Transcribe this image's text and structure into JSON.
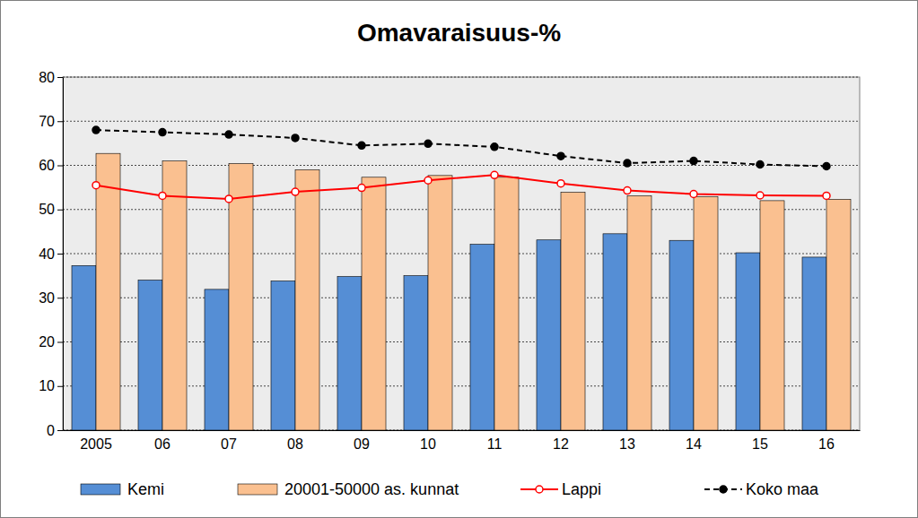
{
  "chart_data": {
    "type": "bar",
    "title": "Omavaraisuus-%",
    "categories": [
      "2005",
      "06",
      "07",
      "08",
      "09",
      "10",
      "11",
      "12",
      "13",
      "14",
      "15",
      "16"
    ],
    "series": [
      {
        "name": "Kemi",
        "type": "bar",
        "color": "#558ed5",
        "values": [
          37.3,
          34.0,
          31.9,
          33.8,
          34.8,
          35.0,
          42.1,
          43.1,
          44.5,
          43.0,
          40.2,
          39.2
        ]
      },
      {
        "name": "20001-50000 as. kunnat",
        "type": "bar",
        "color": "#fac090",
        "values": [
          62.7,
          61.0,
          60.4,
          59.0,
          57.3,
          57.7,
          57.3,
          53.9,
          53.1,
          52.9,
          52.0,
          52.3
        ]
      },
      {
        "name": "Lappi",
        "type": "line",
        "color": "#ff0000",
        "marker": "circle-open",
        "line_style": "solid",
        "values": [
          55.5,
          53.1,
          52.4,
          54.0,
          54.9,
          56.6,
          57.8,
          55.9,
          54.3,
          53.5,
          53.2,
          53.1
        ]
      },
      {
        "name": "Koko maa",
        "type": "line",
        "color": "#000000",
        "marker": "circle",
        "line_style": "dashed",
        "values": [
          68.0,
          67.5,
          67.0,
          66.2,
          64.5,
          64.9,
          64.2,
          62.1,
          60.5,
          61.0,
          60.2,
          59.8
        ]
      }
    ],
    "ylim": [
      0,
      80
    ],
    "yticks": [
      0,
      10,
      20,
      30,
      40,
      50,
      60,
      70,
      80
    ],
    "grid": true,
    "legend": "bottom"
  }
}
